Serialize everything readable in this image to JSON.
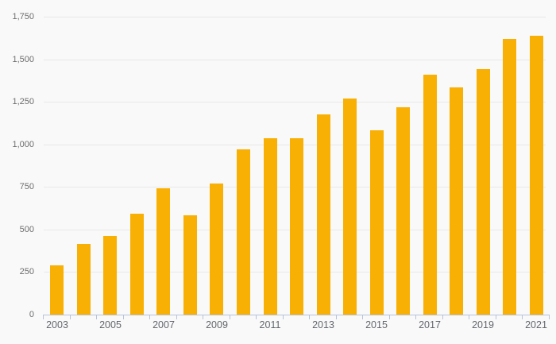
{
  "chart_data": {
    "type": "bar",
    "title": "",
    "xlabel": "",
    "ylabel": "",
    "categories": [
      "2003",
      "2004",
      "2005",
      "2006",
      "2007",
      "2008",
      "2009",
      "2010",
      "2011",
      "2012",
      "2013",
      "2014",
      "2015",
      "2016",
      "2017",
      "2018",
      "2019",
      "2020",
      "2021"
    ],
    "values": [
      290,
      415,
      460,
      595,
      740,
      585,
      770,
      970,
      1035,
      1035,
      1175,
      1270,
      1085,
      1220,
      1410,
      1335,
      1440,
      1620,
      1640
    ],
    "ylim": [
      0,
      1750
    ],
    "yticks": [
      0,
      250,
      500,
      750,
      1000,
      1250,
      1500,
      1750
    ],
    "ytick_labels": [
      "0",
      "250",
      "500",
      "750",
      "1,000",
      "1,250",
      "1,500",
      "1,750"
    ],
    "xtick_labels_shown": [
      "2003",
      "2005",
      "2007",
      "2009",
      "2011",
      "2013",
      "2015",
      "2017",
      "2019",
      "2021"
    ],
    "grid": "horizontal",
    "legend": "none",
    "colors": {
      "bar": "#F9B005",
      "axis": "#B7C3DA",
      "gridline": "#E8E8E8",
      "background": "#F9F9F9",
      "y_label_text": "#6E6E6E",
      "x_label_text": "#63676D"
    }
  }
}
